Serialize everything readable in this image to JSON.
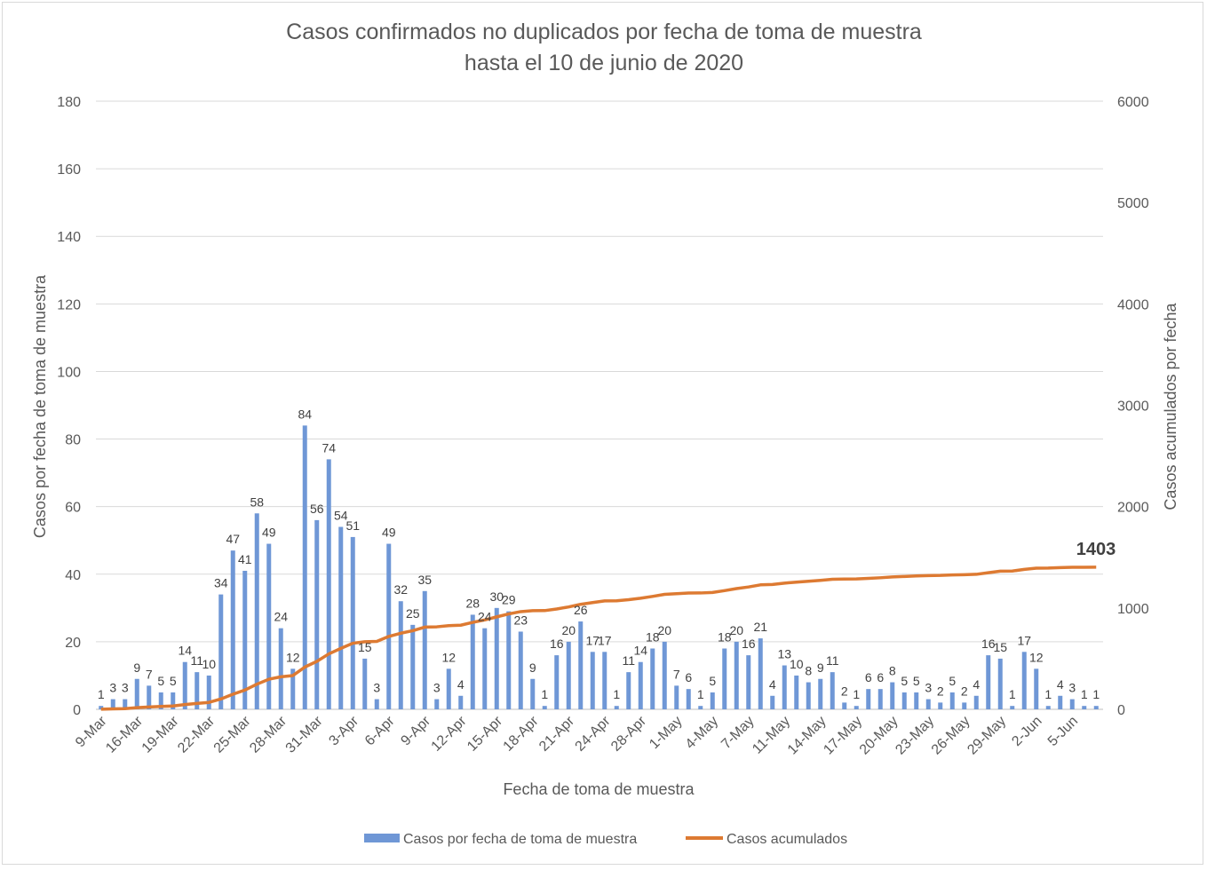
{
  "chart_data": {
    "type": "bar+line",
    "title": [
      "Casos confirmados no duplicados por fecha de toma de muestra",
      "hasta el 10 de junio de 2020"
    ],
    "xlabel": "Fecha de toma de muestra",
    "ylabel": "Casos por fecha de toma de muestra",
    "y2label": "Casos acumulados por fecha",
    "ylim": [
      0,
      180
    ],
    "yticks": [
      0,
      20,
      40,
      60,
      80,
      100,
      120,
      140,
      160,
      180
    ],
    "y2lim": [
      0,
      6000
    ],
    "y2ticks": [
      0,
      1000,
      2000,
      3000,
      4000,
      5000,
      6000
    ],
    "grid": true,
    "legend_position": "bottom",
    "x_tick_every": 3,
    "x_tick_labels": [
      "9-Mar",
      "16-Mar",
      "19-Mar",
      "22-Mar",
      "25-Mar",
      "28-Mar",
      "31-Mar",
      "3-Apr",
      "6-Apr",
      "9-Apr",
      "12-Apr",
      "15-Apr",
      "18-Apr",
      "21-Apr",
      "24-Apr",
      "28-Apr",
      "1-May",
      "4-May",
      "7-May",
      "11-May",
      "14-May",
      "17-May",
      "20-May",
      "23-May",
      "26-May",
      "29-May",
      "2-Jun",
      "5-Jun"
    ],
    "series": [
      {
        "name": "Casos por fecha de toma de muestra",
        "type": "bar",
        "axis": "left",
        "color": "#6f97d6",
        "values": [
          1,
          3,
          3,
          9,
          7,
          5,
          5,
          14,
          11,
          10,
          34,
          47,
          41,
          58,
          49,
          24,
          12,
          84,
          56,
          74,
          54,
          51,
          15,
          3,
          49,
          32,
          25,
          35,
          3,
          12,
          4,
          28,
          24,
          30,
          29,
          23,
          9,
          1,
          16,
          20,
          26,
          17,
          17,
          1,
          11,
          14,
          18,
          20,
          7,
          6,
          1,
          5,
          18,
          20,
          16,
          21,
          4,
          13,
          10,
          8,
          9,
          11,
          2,
          1,
          6,
          6,
          8,
          5,
          5,
          3,
          2,
          5,
          2,
          4,
          16,
          15,
          1,
          17,
          12,
          1,
          4,
          3,
          1,
          1
        ]
      },
      {
        "name": "Casos acumulados",
        "type": "line",
        "axis": "right",
        "color": "#dd7a32",
        "cumulative_of": 0,
        "end_label": "1403"
      }
    ]
  }
}
